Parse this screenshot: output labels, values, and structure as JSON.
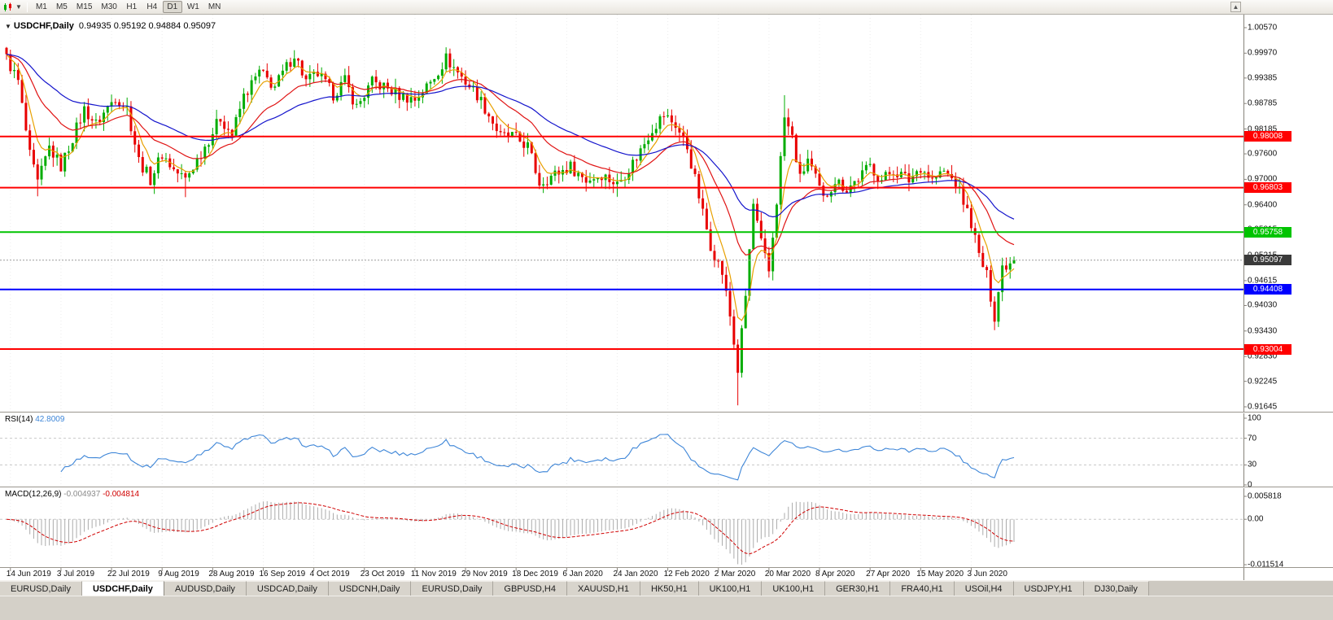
{
  "toolbar": {
    "timeframes": [
      "M1",
      "M5",
      "M15",
      "M30",
      "H1",
      "H4",
      "D1",
      "W1",
      "MN"
    ],
    "active": "D1"
  },
  "chart_header": {
    "symbol": "USDCHF,Daily",
    "ohlc_text": "0.94935 0.95192 0.94884 0.95097"
  },
  "panels": {
    "rsi": {
      "label": "RSI(14)",
      "value": "42.8009"
    },
    "macd": {
      "label": "MACD(12,26,9)",
      "value_main": "-0.004937",
      "value_signal": "-0.004814"
    }
  },
  "tabs": {
    "active_index": 1,
    "items": [
      "EURUSD,Daily",
      "USDCHF,Daily",
      "AUDUSD,Daily",
      "USDCAD,Daily",
      "USDCNH,Daily",
      "EURUSD,Daily",
      "GBPUSD,H4",
      "XAUUSD,H1",
      "HK50,H1",
      "UK100,H1",
      "UK100,H1",
      "GER30,H1",
      "FRA40,H1",
      "USOil,H4",
      "USDJPY,H1",
      "DJ30,Daily"
    ]
  },
  "colors": {
    "up": "#00AC00",
    "down": "#E80000",
    "ma_fast": "#E8A000",
    "ma_mid": "#E01414",
    "ma_slow": "#1414CC",
    "rsi_line": "#3E86D8",
    "macd_hist": "#ABABAB",
    "macd_signal": "#D00000",
    "level_red": "#FF0000",
    "level_green": "#00C400",
    "level_blue": "#0000FF",
    "current_tag": "#3A3A3A",
    "grid": "#ECECEC",
    "axis_line": "#87837B"
  },
  "chart_data": {
    "type": "candlestick",
    "symbol": "USDCHF",
    "timeframe": "Daily",
    "bars": 260,
    "ohlc_last": {
      "open": 0.94935,
      "high": 0.95192,
      "low": 0.94884,
      "close": 0.95097
    },
    "price_axis_ticks": [
      "1.00570",
      "0.99970",
      "0.99385",
      "0.98785",
      "0.98185",
      "0.97600",
      "0.97000",
      "0.96400",
      "0.95815",
      "0.95215",
      "0.94615",
      "0.94030",
      "0.93430",
      "0.92830",
      "0.92245",
      "0.91645"
    ],
    "date_ticks": [
      "14 Jun 2019",
      "3 Jul 2019",
      "22 Jul 2019",
      "9 Aug 2019",
      "28 Aug 2019",
      "16 Sep 2019",
      "4 Oct 2019",
      "23 Oct 2019",
      "11 Nov 2019",
      "29 Nov 2019",
      "18 Dec 2019",
      "6 Jan 2020",
      "24 Jan 2020",
      "12 Feb 2020",
      "2 Mar 2020",
      "20 Mar 2020",
      "8 Apr 2020",
      "27 Apr 2020",
      "15 May 2020",
      "3 Jun 2020"
    ],
    "horizontal_levels": [
      {
        "price": 0.98008,
        "label": "0.98008",
        "color": "red"
      },
      {
        "price": 0.96803,
        "label": "0.96803",
        "color": "red"
      },
      {
        "price": 0.95758,
        "label": "0.95758",
        "color": "green"
      },
      {
        "price": 0.94408,
        "label": "0.94408",
        "color": "blue"
      },
      {
        "price": 0.93004,
        "label": "0.93004",
        "color": "red"
      }
    ],
    "current_price": {
      "value": 0.95097,
      "label": "0.95097"
    },
    "close_keyframes": [
      [
        0,
        0.9985
      ],
      [
        3,
        0.993
      ],
      [
        6,
        0.9755
      ],
      [
        8,
        0.969
      ],
      [
        11,
        0.9775
      ],
      [
        14,
        0.973
      ],
      [
        17,
        0.9798
      ],
      [
        20,
        0.9865
      ],
      [
        23,
        0.983
      ],
      [
        28,
        0.9895
      ],
      [
        31,
        0.9868
      ],
      [
        34,
        0.9745
      ],
      [
        37,
        0.97
      ],
      [
        40,
        0.976
      ],
      [
        43,
        0.9722
      ],
      [
        46,
        0.97
      ],
      [
        51,
        0.9778
      ],
      [
        55,
        0.9845
      ],
      [
        58,
        0.9805
      ],
      [
        61,
        0.9895
      ],
      [
        65,
        0.9952
      ],
      [
        69,
        0.9918
      ],
      [
        74,
        0.9995
      ],
      [
        77,
        0.993
      ],
      [
        80,
        0.9948
      ],
      [
        84,
        0.99
      ],
      [
        87,
        0.9932
      ],
      [
        90,
        0.987
      ],
      [
        94,
        0.9928
      ],
      [
        97,
        0.9918
      ],
      [
        101,
        0.9898
      ],
      [
        105,
        0.9888
      ],
      [
        109,
        0.9928
      ],
      [
        113,
        0.9985
      ],
      [
        118,
        0.993
      ],
      [
        121,
        0.99
      ],
      [
        124,
        0.9852
      ],
      [
        127,
        0.98
      ],
      [
        130,
        0.9802
      ],
      [
        134,
        0.9778
      ],
      [
        137,
        0.9692
      ],
      [
        141,
        0.9712
      ],
      [
        145,
        0.973
      ],
      [
        149,
        0.9698
      ],
      [
        153,
        0.9712
      ],
      [
        157,
        0.9688
      ],
      [
        162,
        0.9752
      ],
      [
        166,
        0.982
      ],
      [
        169,
        0.9852
      ],
      [
        172,
        0.9828
      ],
      [
        175,
        0.9775
      ],
      [
        177,
        0.97
      ],
      [
        179,
        0.962
      ],
      [
        181,
        0.9545
      ],
      [
        184,
        0.948
      ],
      [
        186,
        0.9378
      ],
      [
        188,
        0.925
      ],
      [
        190,
        0.9425
      ],
      [
        192,
        0.964
      ],
      [
        194,
        0.9548
      ],
      [
        196,
        0.9482
      ],
      [
        198,
        0.965
      ],
      [
        200,
        0.9845
      ],
      [
        202,
        0.9798
      ],
      [
        204,
        0.97
      ],
      [
        206,
        0.9748
      ],
      [
        210,
        0.9652
      ],
      [
        213,
        0.9698
      ],
      [
        216,
        0.9678
      ],
      [
        219,
        0.9702
      ],
      [
        222,
        0.9732
      ],
      [
        225,
        0.9698
      ],
      [
        228,
        0.9722
      ],
      [
        232,
        0.9698
      ],
      [
        235,
        0.973
      ],
      [
        238,
        0.9698
      ],
      [
        241,
        0.9718
      ],
      [
        244,
        0.9692
      ],
      [
        246,
        0.9648
      ],
      [
        248,
        0.9598
      ],
      [
        250,
        0.952
      ],
      [
        252,
        0.9472
      ],
      [
        254,
        0.9378
      ],
      [
        256,
        0.9495
      ],
      [
        259,
        0.95097
      ]
    ],
    "wick_spikes": [
      {
        "bar": 8,
        "low": 0.966
      },
      {
        "bar": 46,
        "low": 0.9658
      },
      {
        "bar": 74,
        "high": 1.0004
      },
      {
        "bar": 113,
        "high": 1.0001
      },
      {
        "bar": 157,
        "low": 0.9659
      },
      {
        "bar": 188,
        "low": 0.9168
      },
      {
        "bar": 200,
        "high": 0.9898
      },
      {
        "bar": 254,
        "low": 0.9372
      }
    ],
    "moving_averages": [
      {
        "period": 6,
        "color_key": "ma_fast"
      },
      {
        "period": 20,
        "color_key": "ma_mid"
      },
      {
        "period": 45,
        "color_key": "ma_slow"
      }
    ],
    "indicators": {
      "rsi": {
        "period": 14,
        "last": "42.8009",
        "axis": [
          "100",
          "70",
          "30",
          "0"
        ],
        "dashed_levels": [
          70,
          30
        ]
      },
      "macd": {
        "fast": 12,
        "slow": 26,
        "signal": 9,
        "last_main": "-0.004937",
        "last_signal": "-0.004814",
        "axis": [
          "0.005818",
          "0.00",
          "-0.011514"
        ]
      }
    }
  }
}
